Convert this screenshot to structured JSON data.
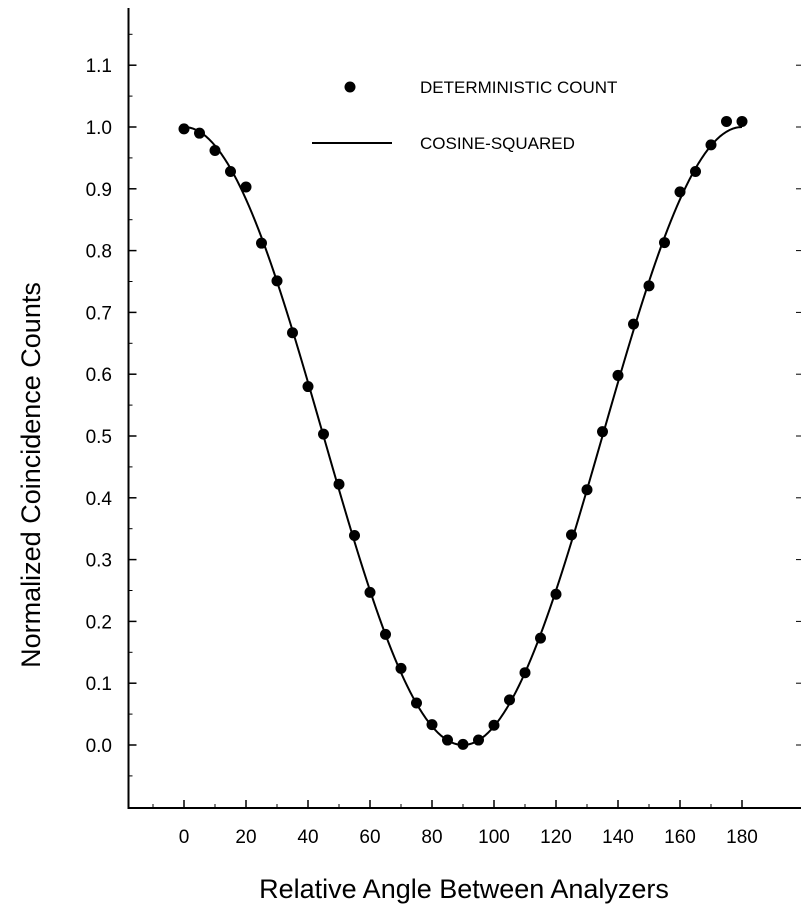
{
  "chart_data": {
    "type": "scatter",
    "title": "",
    "xlabel": "Relative Angle Between Analyzers",
    "ylabel": "Normalized Coincidence Counts",
    "xlim": [
      -20,
      183
    ],
    "ylim": [
      -0.1,
      1.2
    ],
    "x_ticks": [
      0,
      20,
      40,
      60,
      80,
      100,
      120,
      140,
      160,
      180
    ],
    "x_tick_labels": [
      "0",
      "20",
      "40",
      "60",
      "80",
      "100",
      "120",
      "140",
      "160",
      "180"
    ],
    "y_ticks": [
      0.0,
      0.1,
      0.2,
      0.3,
      0.4,
      0.5,
      0.6,
      0.7,
      0.8,
      0.9,
      1.0,
      1.1
    ],
    "y_tick_labels": [
      "0.0",
      "0.1",
      "0.2",
      "0.3",
      "0.4",
      "0.5",
      "0.6",
      "0.7",
      "0.8",
      "0.9",
      "1.0",
      "1.1"
    ],
    "grid": false,
    "legend_position": "top-center",
    "series": [
      {
        "name": "DETERMINISTIC COUNT",
        "kind": "markers",
        "marker": "filled-circle",
        "color": "#000000",
        "x": [
          0,
          5,
          10,
          15,
          20,
          25,
          30,
          35,
          40,
          45,
          50,
          55,
          60,
          65,
          70,
          75,
          80,
          85,
          90,
          95,
          100,
          105,
          110,
          115,
          120,
          125,
          130,
          135,
          140,
          145,
          150,
          155,
          160,
          165,
          170,
          175,
          180
        ],
        "y": [
          0.997,
          0.99,
          0.962,
          0.928,
          0.903,
          0.812,
          0.751,
          0.667,
          0.58,
          0.503,
          0.422,
          0.339,
          0.247,
          0.179,
          0.124,
          0.068,
          0.033,
          0.008,
          0.001,
          0.008,
          0.032,
          0.073,
          0.117,
          0.173,
          0.244,
          0.34,
          0.413,
          0.507,
          0.598,
          0.681,
          0.743,
          0.813,
          0.895,
          0.928,
          0.971,
          1.009,
          1.009
        ]
      },
      {
        "name": "COSINE-SQUARED",
        "kind": "line",
        "color": "#000000",
        "function": "cos^2(x)"
      }
    ]
  }
}
